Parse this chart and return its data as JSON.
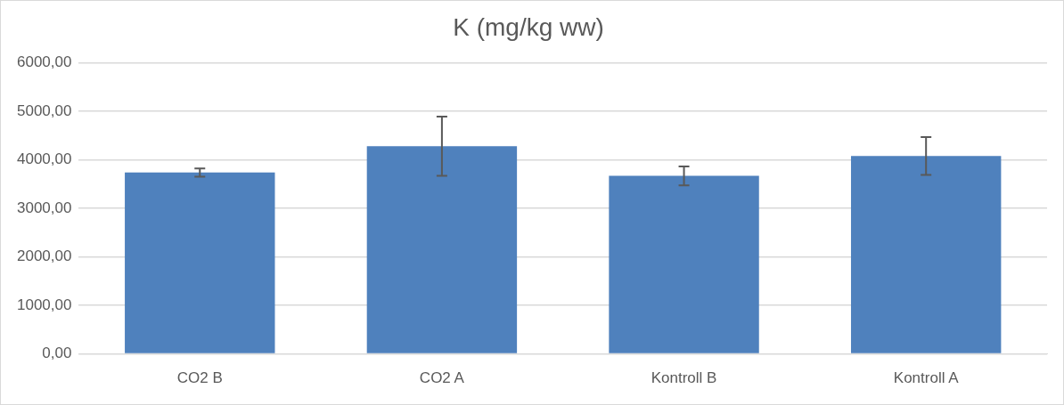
{
  "chart_data": {
    "type": "bar",
    "title": "K (mg/kg ww)",
    "categories": [
      "CO2 B",
      "CO2 A",
      "Kontroll B",
      "Kontroll A"
    ],
    "values": [
      3740,
      4280,
      3670,
      4080
    ],
    "errors": [
      85,
      610,
      195,
      390
    ],
    "color": "#4f81bd",
    "ylim": [
      0,
      6000
    ],
    "yticks": [
      {
        "value": 0,
        "label": "0,00"
      },
      {
        "value": 1000,
        "label": "1000,00"
      },
      {
        "value": 2000,
        "label": "2000,00"
      },
      {
        "value": 3000,
        "label": "3000,00"
      },
      {
        "value": 4000,
        "label": "4000,00"
      },
      {
        "value": 5000,
        "label": "5000,00"
      },
      {
        "value": 6000,
        "label": "6000,00"
      }
    ],
    "grid": "y",
    "legend": false
  }
}
